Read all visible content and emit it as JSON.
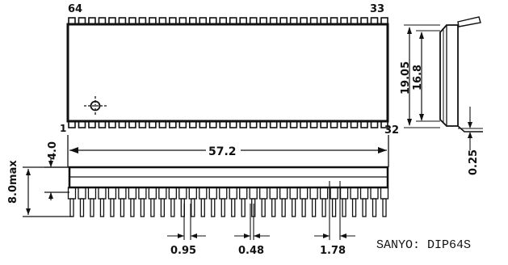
{
  "package": {
    "manufacturer_code": "SANYO: DIP64S",
    "pin_labels": {
      "top_left": "64",
      "top_right": "33",
      "bottom_left": "1",
      "bottom_right": "32"
    },
    "pin_count": 64,
    "pins_per_side": 32
  },
  "dimensions": {
    "length": "57.2",
    "width_outer": "19.05",
    "width_body": "16.8",
    "body_height_top": "4.0",
    "max_height": "8.0max",
    "lead_thickness": "0.25",
    "lead_width_a": "0.95",
    "lead_width_b": "0.48",
    "pitch": "1.78"
  },
  "colors": {
    "ink": "#111111",
    "paper": "#ffffff"
  }
}
